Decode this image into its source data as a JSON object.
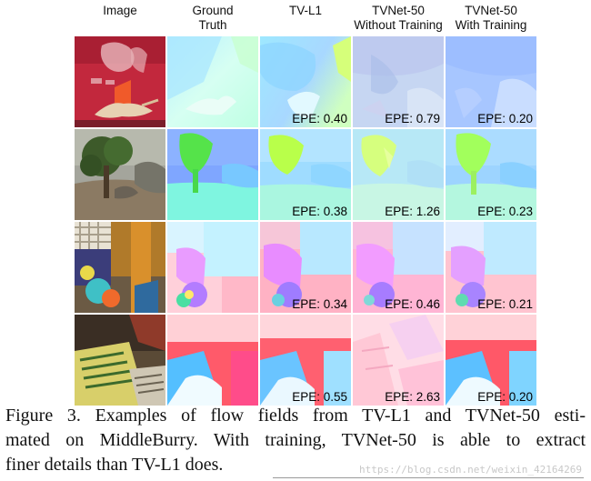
{
  "headers": [
    "Image",
    "Ground Truth",
    "TV-L1",
    "TVNet-50 Without Training",
    "TVNet-50 With Training"
  ],
  "header_lines": [
    [
      "Image"
    ],
    [
      "Ground",
      "Truth"
    ],
    [
      "TV-L1"
    ],
    [
      "TVNet-50",
      "Without Training"
    ],
    [
      "TVNet-50",
      "With Training"
    ]
  ],
  "rows": [
    {
      "name": "red-shirt-scene",
      "epe": [
        "EPE: 0.40",
        "EPE: 0.79",
        "EPE: 0.20"
      ]
    },
    {
      "name": "tree-scene",
      "epe": [
        "EPE: 0.38",
        "EPE: 1.26",
        "EPE: 0.23"
      ]
    },
    {
      "name": "toys-scene",
      "epe": [
        "EPE: 0.34",
        "EPE: 0.46",
        "EPE: 0.21"
      ]
    },
    {
      "name": "newspaper-scene",
      "epe": [
        "EPE: 0.55",
        "EPE: 2.63",
        "EPE: 0.20"
      ]
    }
  ],
  "caption": "Figure 3. Examples of flow fields from TV-L1 and TVNet-50 estimated on MiddleBurry. With training, TVNet-50 is able to extract finer details than TV-L1 does.",
  "caption_lines": [
    "Figure 3. Examples of flow fields from TV-L1 and TVNet-50 esti-",
    "mated on MiddleBurry. With training, TVNet-50 is able to extract",
    "finer details than TV-L1 does."
  ],
  "watermark": "https://blog.csdn.net/weixin_42164269"
}
